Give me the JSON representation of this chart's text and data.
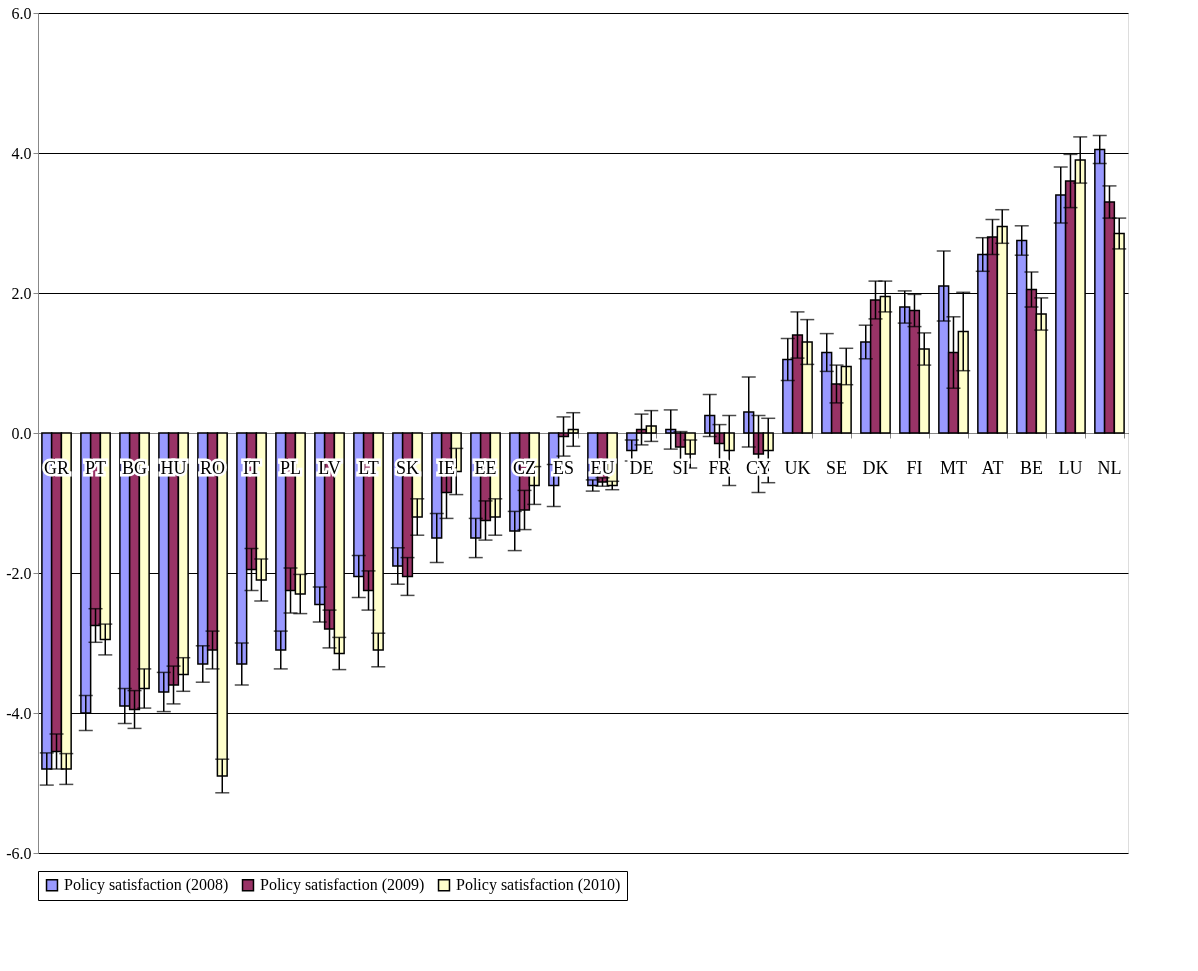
{
  "chart_data": {
    "type": "bar",
    "categories": [
      "GR",
      "PT",
      "BG",
      "HU",
      "RO",
      "IT",
      "PL",
      "LV",
      "LT",
      "SK",
      "IE",
      "EE",
      "CZ",
      "ES",
      "EU",
      "DE",
      "SI",
      "FR",
      "CY",
      "UK",
      "SE",
      "DK",
      "FI",
      "MT",
      "AT",
      "BE",
      "LU",
      "NL"
    ],
    "series": [
      {
        "name": "Policy satisfaction (2008)",
        "color": "#9999ff",
        "values": [
          -4.8,
          -4.0,
          -3.9,
          -3.7,
          -3.3,
          -3.3,
          -3.1,
          -2.45,
          -2.05,
          -1.9,
          -1.5,
          -1.5,
          -1.4,
          -0.75,
          -0.75,
          -0.25,
          0.05,
          0.25,
          0.3,
          1.05,
          1.15,
          1.3,
          1.8,
          2.1,
          2.55,
          2.75,
          3.4,
          4.05
        ],
        "errors": [
          0.23,
          0.25,
          0.25,
          0.28,
          0.26,
          0.3,
          0.27,
          0.25,
          0.3,
          0.26,
          0.35,
          0.28,
          0.28,
          0.3,
          0.08,
          0.15,
          0.28,
          0.3,
          0.5,
          0.3,
          0.27,
          0.24,
          0.23,
          0.5,
          0.24,
          0.21,
          0.4,
          0.2
        ]
      },
      {
        "name": "Policy satisfaction (2009)",
        "color": "#993366",
        "values": [
          -4.55,
          -2.75,
          -3.95,
          -3.6,
          -3.1,
          -1.95,
          -2.25,
          -2.8,
          -2.25,
          -2.05,
          -0.85,
          -1.25,
          -1.1,
          -0.05,
          -0.7,
          0.05,
          -0.2,
          -0.15,
          -0.3,
          1.4,
          0.7,
          1.9,
          1.75,
          1.15,
          2.8,
          2.05,
          3.6,
          3.3
        ],
        "errors": [
          0.25,
          0.24,
          0.27,
          0.27,
          0.27,
          0.3,
          0.32,
          0.27,
          0.28,
          0.27,
          0.37,
          0.28,
          0.28,
          0.28,
          0.06,
          0.22,
          0.22,
          0.27,
          0.55,
          0.33,
          0.27,
          0.27,
          0.23,
          0.51,
          0.25,
          0.25,
          0.38,
          0.23
        ]
      },
      {
        "name": "Policy satisfaction (2010)",
        "color": "#ffffcc",
        "values": [
          -4.8,
          -2.95,
          -3.65,
          -3.45,
          -4.9,
          -2.1,
          -2.3,
          -3.15,
          -3.1,
          -1.2,
          -0.55,
          -1.2,
          -0.75,
          0.05,
          -0.75,
          0.1,
          -0.3,
          -0.25,
          -0.25,
          1.3,
          0.95,
          1.95,
          1.2,
          1.45,
          2.95,
          1.7,
          3.9,
          2.85
        ],
        "errors": [
          0.22,
          0.22,
          0.28,
          0.24,
          0.24,
          0.3,
          0.28,
          0.23,
          0.24,
          0.26,
          0.33,
          0.26,
          0.27,
          0.24,
          0.06,
          0.22,
          0.2,
          0.5,
          0.46,
          0.32,
          0.26,
          0.22,
          0.23,
          0.56,
          0.24,
          0.23,
          0.33,
          0.22
        ]
      }
    ],
    "ylim": [
      -6,
      6
    ],
    "yticks": [
      {
        "value": -6,
        "label": "-6.0"
      },
      {
        "value": -4,
        "label": "-4.0"
      },
      {
        "value": -2,
        "label": "-2.0"
      },
      {
        "value": 0,
        "label": "0.0"
      },
      {
        "value": 2,
        "label": "2.0"
      },
      {
        "value": 4,
        "label": "4.0"
      },
      {
        "value": 6,
        "label": "6.0"
      }
    ],
    "grid": "y",
    "legend": "bottom"
  }
}
